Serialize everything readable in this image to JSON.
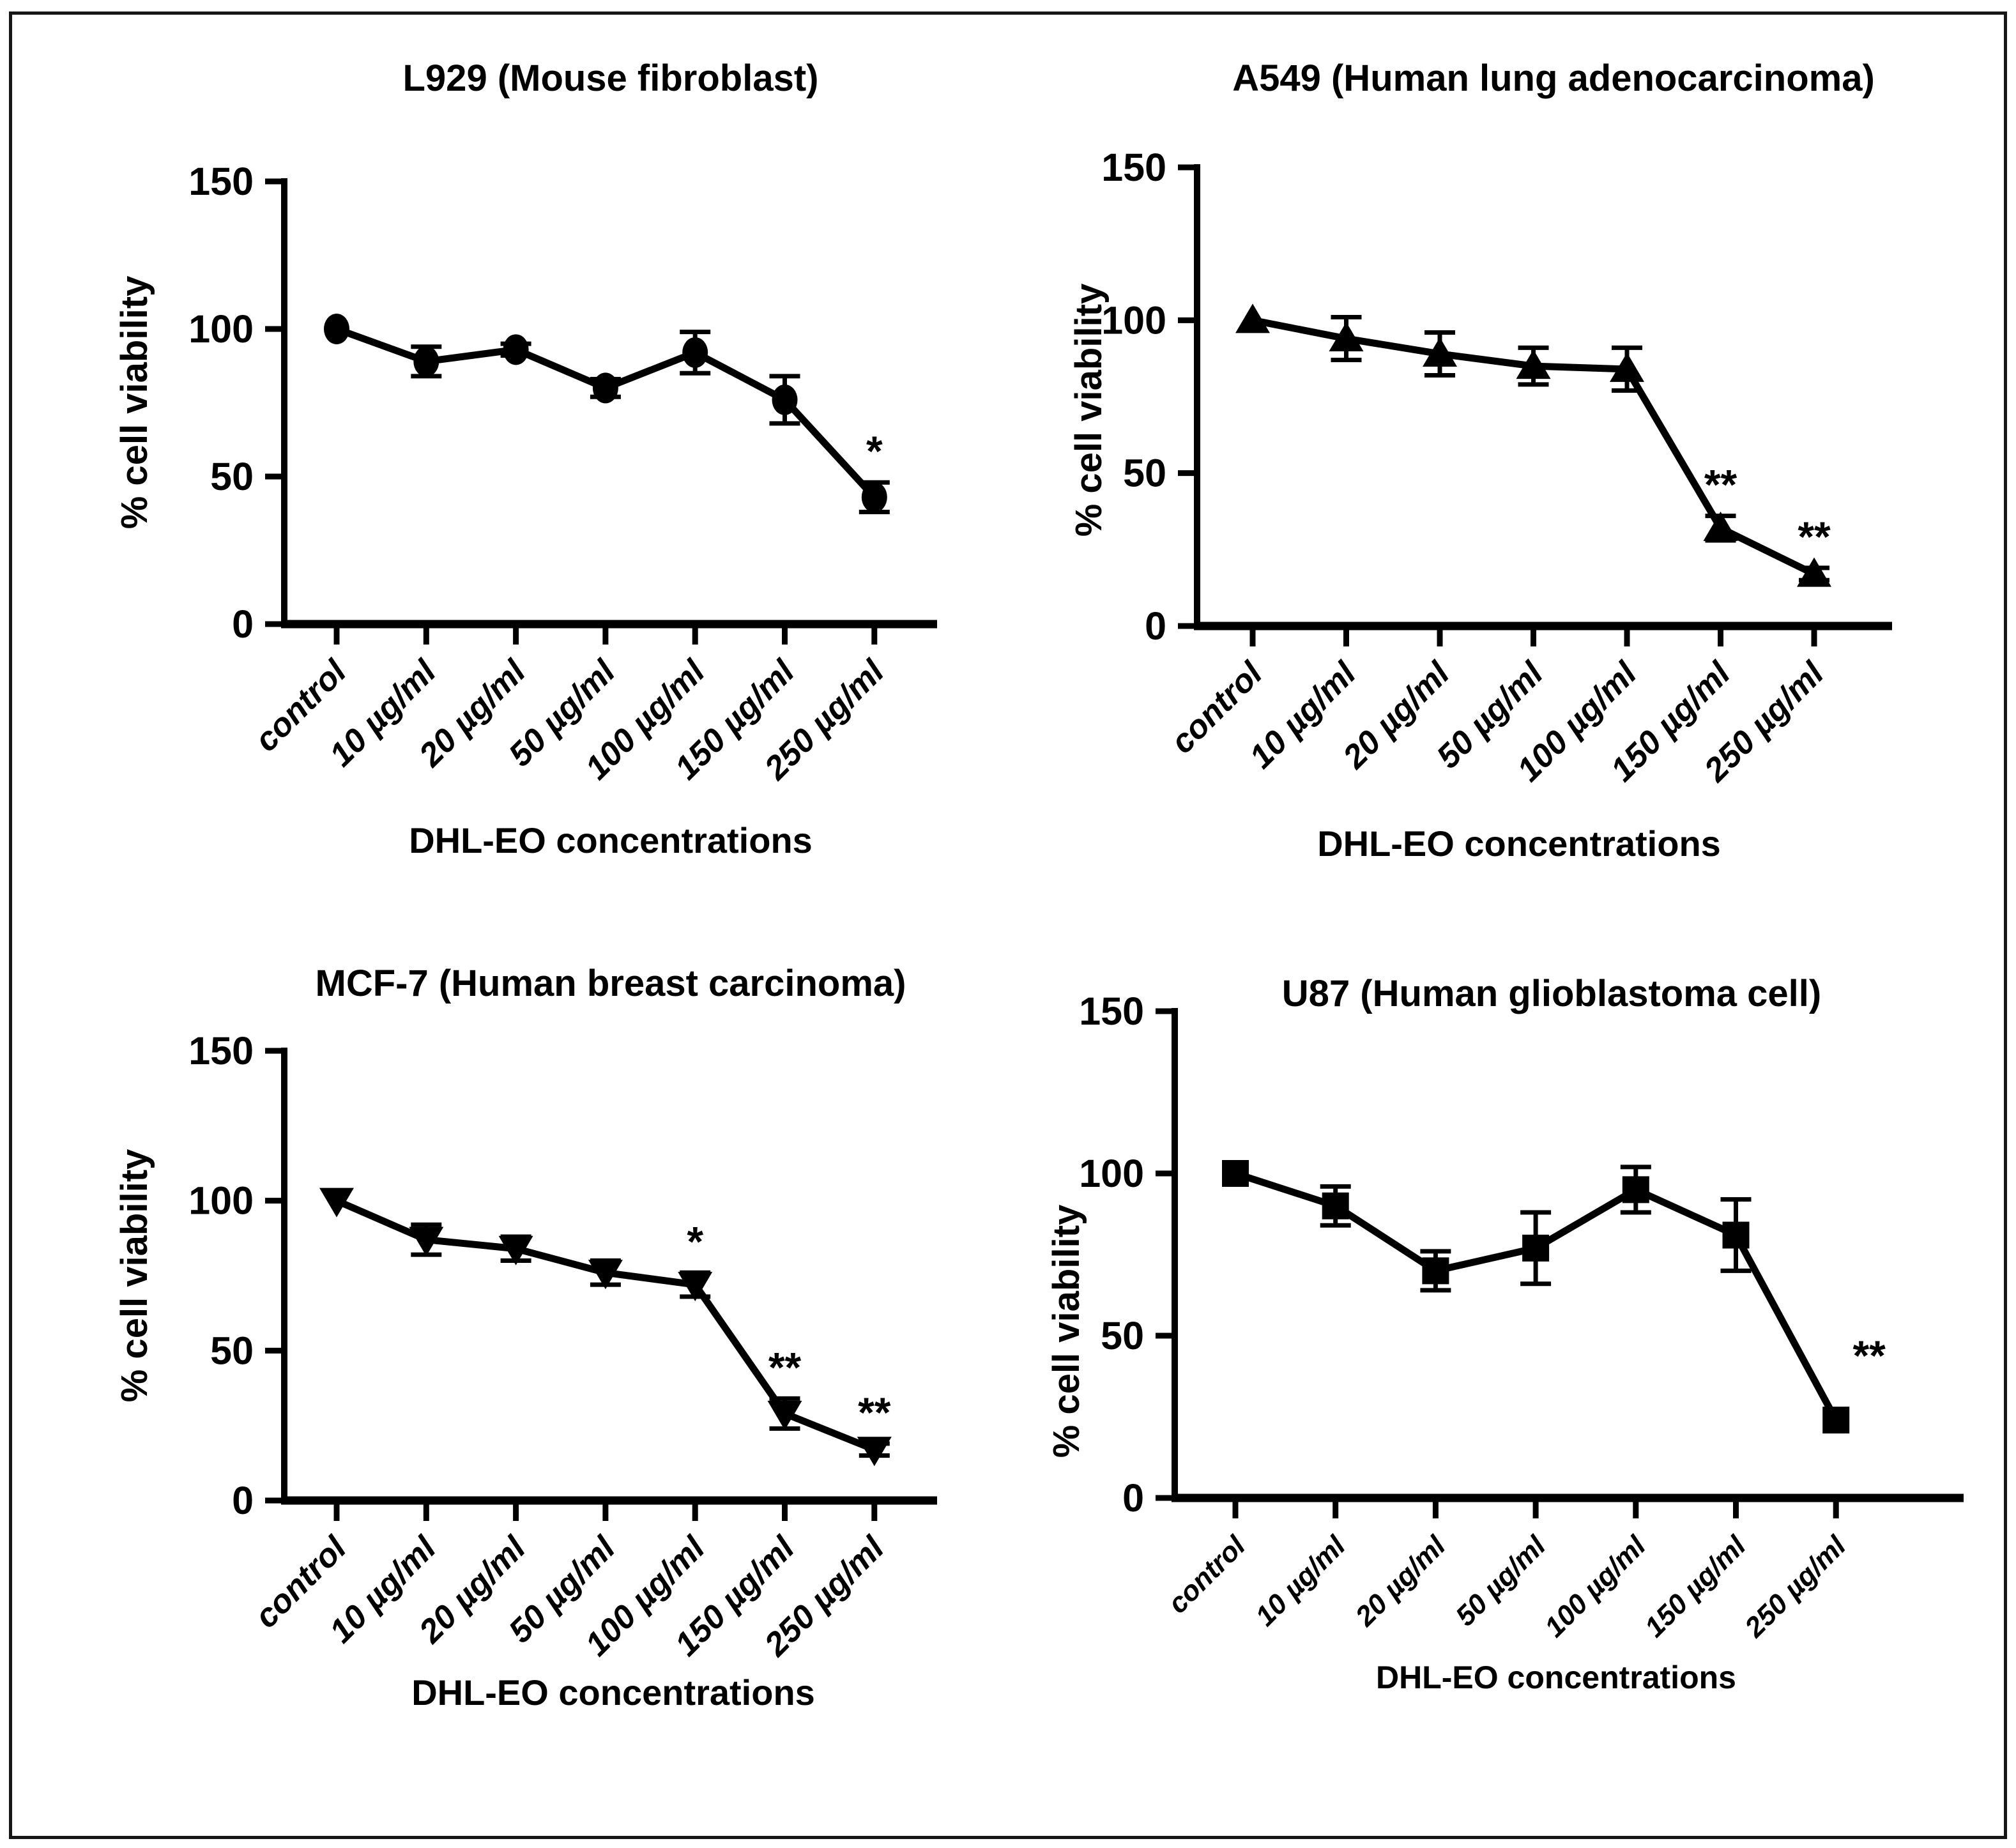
{
  "figure": {
    "background": "#ffffff",
    "border_color": "#161616",
    "ink_color": "#000000",
    "layout": "2x2 grid of line charts"
  },
  "chart_data": [
    {
      "id": "l929",
      "type": "line",
      "title": "L929 (Mouse fibroblast)",
      "xlabel": "DHL-EO concentrations",
      "ylabel": "% cell viability",
      "categories": [
        "control",
        "10 µg/ml",
        "20 µg/ml",
        "50 µg/ml",
        "100 µg/ml",
        "150 µg/ml",
        "250 µg/ml"
      ],
      "values": [
        100,
        89,
        93,
        80,
        92,
        76,
        43
      ],
      "errors": [
        0,
        5,
        2,
        3,
        7,
        8,
        5
      ],
      "significance": [
        "",
        "",
        "",
        "",
        "",
        "",
        "*"
      ],
      "marker": "circle",
      "ylim": [
        0,
        150
      ],
      "yticks": [
        0,
        50,
        100,
        150
      ],
      "grid": false,
      "legend": "none",
      "series_color": "#000000"
    },
    {
      "id": "a549",
      "type": "line",
      "title": "A549 (Human lung adenocarcinoma)",
      "xlabel": "DHL-EO concentrations",
      "ylabel": "% cell viability",
      "categories": [
        "control",
        "10 µg/ml",
        "20 µg/ml",
        "50 µg/ml",
        "100 µg/ml",
        "150 µg/ml",
        "250 µg/ml"
      ],
      "values": [
        100,
        94,
        89,
        85,
        84,
        32,
        17
      ],
      "errors": [
        0,
        7,
        7,
        6,
        7,
        4,
        2
      ],
      "significance": [
        "",
        "",
        "",
        "",
        "",
        "**",
        "**"
      ],
      "marker": "triangle-up",
      "ylim": [
        0,
        150
      ],
      "yticks": [
        0,
        50,
        100,
        150
      ],
      "grid": false,
      "legend": "none",
      "series_color": "#000000"
    },
    {
      "id": "mcf7",
      "type": "line",
      "title": "MCF-7 (Human breast carcinoma)",
      "xlabel": "DHL-EO concentrations",
      "ylabel": "% cell viability",
      "categories": [
        "control",
        "10 µg/ml",
        "20 µg/ml",
        "50 µg/ml",
        "100 µg/ml",
        "150 µg/ml",
        "250 µg/ml"
      ],
      "values": [
        100,
        87,
        84,
        76,
        72,
        29,
        17
      ],
      "errors": [
        0,
        5,
        4,
        4,
        4,
        5,
        2
      ],
      "significance": [
        "",
        "",
        "",
        "",
        "*",
        "**",
        "**"
      ],
      "marker": "triangle-down",
      "ylim": [
        0,
        150
      ],
      "yticks": [
        0,
        50,
        100,
        150
      ],
      "grid": false,
      "legend": "none",
      "series_color": "#000000"
    },
    {
      "id": "u87",
      "type": "line",
      "title": "U87 (Human glioblastoma cell)",
      "xlabel": "DHL-EO concentrations",
      "ylabel": "% cell viability",
      "categories": [
        "control",
        "10 µg/ml",
        "20 µg/ml",
        "50 µg/ml",
        "100 µg/ml",
        "150 µg/ml",
        "250 µg/ml"
      ],
      "values": [
        100,
        90,
        70,
        77,
        95,
        81,
        24
      ],
      "errors": [
        0,
        6,
        6,
        11,
        7,
        11,
        0
      ],
      "significance": [
        "",
        "",
        "",
        "",
        "",
        "",
        "**"
      ],
      "marker": "square",
      "ylim": [
        0,
        150
      ],
      "yticks": [
        0,
        50,
        100,
        150
      ],
      "grid": false,
      "legend": "none",
      "series_color": "#000000"
    }
  ]
}
